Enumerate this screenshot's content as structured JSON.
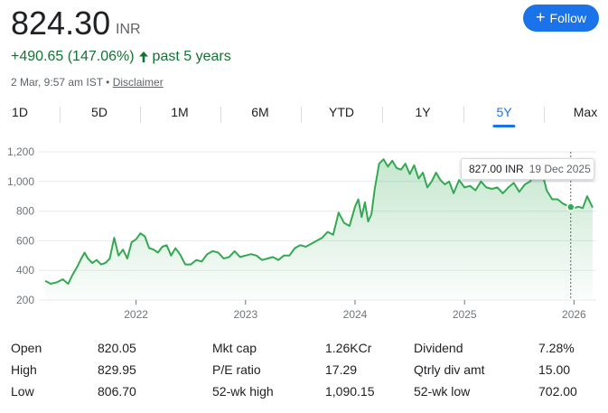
{
  "header": {
    "price": "824.30",
    "currency": "INR",
    "change": "+490.65 (147.06%)",
    "period": "past 5 years",
    "timestamp": "2 Mar, 9:57 am IST",
    "separator": "•",
    "disclaimer": "Disclaimer",
    "follow_label": "Follow",
    "follow_icon": "+"
  },
  "tabs": [
    "1D",
    "5D",
    "1M",
    "6M",
    "YTD",
    "1Y",
    "5Y",
    "Max"
  ],
  "active_tab": "5Y",
  "tooltip": {
    "value": "827.00 INR",
    "date": "19 Dec 2025"
  },
  "colors": {
    "line": "#34a853",
    "accent": "#1a73e8",
    "positive": "#137333"
  },
  "stats": {
    "col1": [
      {
        "label": "Open",
        "value": "820.05"
      },
      {
        "label": "High",
        "value": "829.95"
      },
      {
        "label": "Low",
        "value": "806.70"
      }
    ],
    "col2": [
      {
        "label": "Mkt cap",
        "value": "1.26KCr"
      },
      {
        "label": "P/E ratio",
        "value": "17.29"
      },
      {
        "label": "52-wk high",
        "value": "1,090.15"
      }
    ],
    "col3": [
      {
        "label": "Dividend",
        "value": "7.28%"
      },
      {
        "label": "Qtrly div amt",
        "value": "15.00"
      },
      {
        "label": "52-wk low",
        "value": "702.00"
      }
    ]
  },
  "chart_data": {
    "type": "area",
    "y_ticks": [
      "1,200",
      "1,000",
      "800",
      "600",
      "400",
      "200"
    ],
    "y_tick_values": [
      1200,
      1000,
      800,
      600,
      400,
      200
    ],
    "x_ticks": [
      "2022",
      "2023",
      "2024",
      "2025",
      "2026"
    ],
    "x_tick_values": [
      2022,
      2023,
      2024,
      2025,
      2026
    ],
    "ylim": [
      200,
      1200
    ],
    "xlim": [
      2021.17,
      2026.17
    ],
    "series": [
      {
        "x": [
          2021.17,
          2021.22,
          2021.28,
          2021.33,
          2021.38,
          2021.42,
          2021.46,
          2021.5,
          2021.53,
          2021.56,
          2021.6,
          2021.64,
          2021.68,
          2021.72,
          2021.76,
          2021.8,
          2021.84,
          2021.88,
          2021.92,
          2021.96,
          2022.0,
          2022.04,
          2022.08,
          2022.12,
          2022.16,
          2022.2,
          2022.24,
          2022.28,
          2022.32,
          2022.36,
          2022.4,
          2022.45,
          2022.5,
          2022.55,
          2022.6,
          2022.65,
          2022.7,
          2022.75,
          2022.8,
          2022.85,
          2022.9,
          2022.95,
          2023.0,
          2023.05,
          2023.1,
          2023.15,
          2023.2,
          2023.25,
          2023.3,
          2023.35,
          2023.4,
          2023.45,
          2023.5,
          2023.55,
          2023.6,
          2023.65,
          2023.7,
          2023.75,
          2023.8,
          2023.85,
          2023.9,
          2023.95,
          2024.0,
          2024.03,
          2024.06,
          2024.09,
          2024.12,
          2024.15,
          2024.18,
          2024.22,
          2024.26,
          2024.3,
          2024.34,
          2024.38,
          2024.42,
          2024.46,
          2024.5,
          2024.54,
          2024.58,
          2024.62,
          2024.66,
          2024.7,
          2024.74,
          2024.78,
          2024.82,
          2024.86,
          2024.9,
          2024.95,
          2025.0,
          2025.05,
          2025.1,
          2025.15,
          2025.2,
          2025.25,
          2025.3,
          2025.35,
          2025.4,
          2025.45,
          2025.5,
          2025.55,
          2025.6,
          2025.65,
          2025.7,
          2025.75,
          2025.8,
          2025.85,
          2025.9,
          2025.97,
          2026.0,
          2026.04,
          2026.08,
          2026.12,
          2026.17
        ],
        "y": [
          330,
          310,
          320,
          340,
          310,
          370,
          420,
          480,
          520,
          480,
          450,
          470,
          440,
          450,
          480,
          620,
          500,
          540,
          480,
          590,
          610,
          650,
          630,
          550,
          540,
          520,
          560,
          570,
          500,
          550,
          510,
          440,
          440,
          470,
          460,
          510,
          530,
          520,
          480,
          490,
          530,
          490,
          500,
          510,
          500,
          470,
          480,
          490,
          470,
          500,
          500,
          550,
          570,
          560,
          580,
          600,
          620,
          660,
          640,
          790,
          720,
          700,
          830,
          880,
          760,
          860,
          730,
          780,
          950,
          1120,
          1150,
          1100,
          1140,
          1090,
          1080,
          1120,
          1050,
          1110,
          1020,
          1060,
          960,
          1000,
          1060,
          1010,
          980,
          1000,
          920,
          1010,
          960,
          970,
          940,
          1000,
          960,
          950,
          960,
          920,
          960,
          990,
          930,
          980,
          1000,
          1100,
          1090,
          940,
          880,
          880,
          850,
          827,
          820,
          830,
          820,
          900,
          824
        ]
      }
    ]
  }
}
